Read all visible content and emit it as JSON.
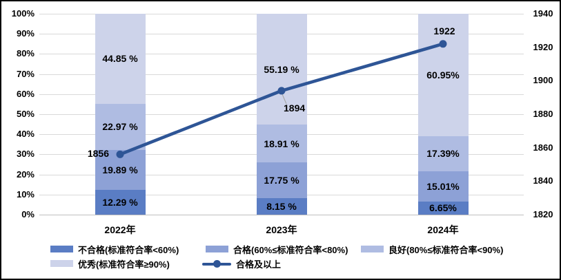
{
  "chart_data": {
    "type": "bar",
    "subtype": "stacked-percent-with-line",
    "categories": [
      "2022年",
      "2023年",
      "2024年"
    ],
    "series": [
      {
        "name": "不合格(标准符合率<60%)",
        "color": "#5a7dc4",
        "values": [
          12.29,
          8.15,
          6.65
        ],
        "labels": [
          "12.29 %",
          "8.15 %",
          "6.65%"
        ]
      },
      {
        "name": "合格(60%≤标准符合率<80%)",
        "color": "#8da1d6",
        "values": [
          19.89,
          17.75,
          15.01
        ],
        "labels": [
          "19.89 %",
          "17.75 %",
          "15.01%"
        ]
      },
      {
        "name": "良好(80%≤标准符合率<90%)",
        "color": "#afbce2",
        "values": [
          22.97,
          18.91,
          17.39
        ],
        "labels": [
          "22.97 %",
          "18.91 %",
          "17.39%"
        ]
      },
      {
        "name": "优秀(标准符合率≥90%)",
        "color": "#cdd3ea",
        "values": [
          44.85,
          55.19,
          60.95
        ],
        "labels": [
          "44.85 %",
          "55.19 %",
          "60.95%"
        ]
      }
    ],
    "line_series": {
      "name": "合格及以上",
      "color": "#2e5596",
      "values": [
        1856,
        1894,
        1922
      ],
      "labels": [
        "1856",
        "1894",
        "1922"
      ],
      "label_placement": [
        "left",
        "below",
        "above"
      ]
    },
    "left_axis": {
      "min": 0,
      "max": 100,
      "tick_labels": [
        "100%",
        "90%",
        "80%",
        "70%",
        "60%",
        "50%",
        "40%",
        "30%",
        "20%",
        "10%",
        "0%"
      ],
      "tick_values": [
        100,
        90,
        80,
        70,
        60,
        50,
        40,
        30,
        20,
        10,
        0
      ]
    },
    "right_axis": {
      "min": 1820,
      "max": 1940,
      "tick_labels": [
        "1940",
        "1920",
        "1900",
        "1880",
        "1860",
        "1840",
        "1820"
      ],
      "tick_values": [
        1940,
        1920,
        1900,
        1880,
        1860,
        1840,
        1820
      ]
    },
    "legend": {
      "items": [
        {
          "label": "不合格(标准符合率<60%)",
          "swatch": "box",
          "color": "#5a7dc4"
        },
        {
          "label": "合格(60%≤标准符合率<80%)",
          "swatch": "box",
          "color": "#8da1d6"
        },
        {
          "label": "良好(80%≤标准符合率<90%)",
          "swatch": "box",
          "color": "#afbce2"
        },
        {
          "label": "优秀(标准符合率≥90%)",
          "swatch": "box",
          "color": "#cdd3ea"
        },
        {
          "label": "合格及以上",
          "swatch": "line",
          "color": "#2e5596"
        }
      ]
    },
    "grid": {
      "color": "#d9d9d9",
      "axis_line_color": "#bfbfbf"
    },
    "leader_line_color": "#a6a6a6",
    "background": "#ffffff",
    "border_color": "#000000"
  }
}
